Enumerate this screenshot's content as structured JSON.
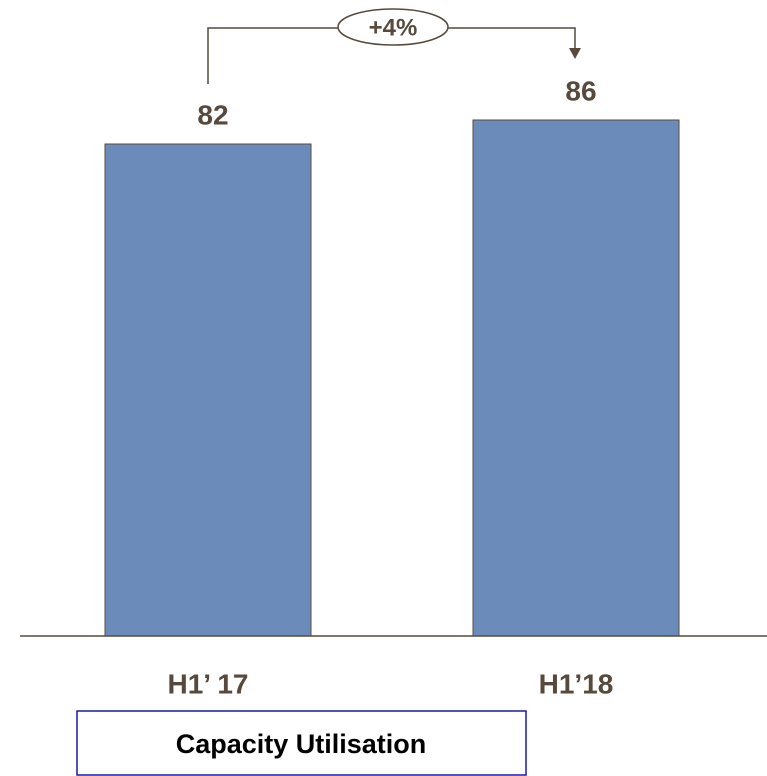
{
  "chart_data": {
    "type": "bar",
    "title": "Capacity Utilisation",
    "categories": [
      "H1’ 17",
      "H1’18"
    ],
    "values": [
      82,
      86
    ],
    "color": "#6b8cba",
    "annotation": "+4%",
    "ylim": [
      0,
      106
    ]
  }
}
